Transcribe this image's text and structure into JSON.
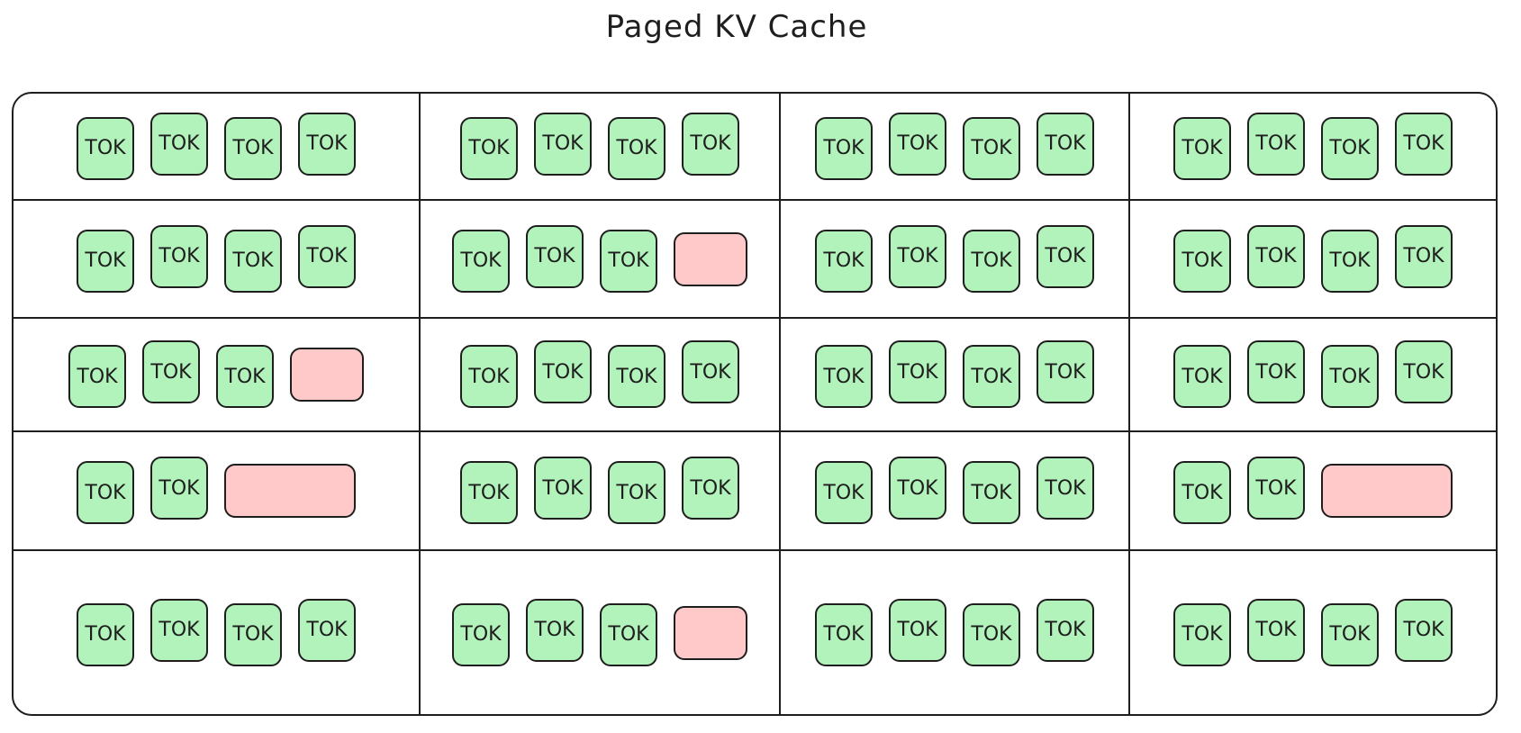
{
  "title": "Paged KV Cache",
  "colors": {
    "token_fill": "#b2f2bb",
    "free_fill": "#ffc9c9",
    "stroke": "#1e1e1e"
  },
  "token_label": "TOK",
  "grid": [
    [
      [
        "TOK",
        "TOK",
        "TOK",
        "TOK"
      ],
      [
        "TOK",
        "TOK",
        "TOK",
        "TOK"
      ],
      [
        "TOK",
        "TOK",
        "TOK",
        "TOK"
      ],
      [
        "TOK",
        "TOK",
        "TOK",
        "TOK"
      ]
    ],
    [
      [
        "TOK",
        "TOK",
        "TOK",
        "TOK"
      ],
      [
        "TOK",
        "TOK",
        "TOK",
        ""
      ],
      [
        "TOK",
        "TOK",
        "TOK",
        "TOK"
      ],
      [
        "TOK",
        "TOK",
        "TOK",
        "TOK"
      ]
    ],
    [
      [
        "TOK",
        "TOK",
        "TOK",
        ""
      ],
      [
        "TOK",
        "TOK",
        "TOK",
        "TOK"
      ],
      [
        "TOK",
        "TOK",
        "TOK",
        "TOK"
      ],
      [
        "TOK",
        "TOK",
        "TOK",
        "TOK"
      ]
    ],
    [
      [
        "TOK",
        "TOK",
        "",
        ""
      ],
      [
        "TOK",
        "TOK",
        "TOK",
        "TOK"
      ],
      [
        "TOK",
        "TOK",
        "TOK",
        "TOK"
      ],
      [
        "TOK",
        "TOK",
        "",
        ""
      ]
    ],
    [
      [
        "TOK",
        "TOK",
        "TOK",
        "TOK"
      ],
      [
        "TOK",
        "TOK",
        "TOK",
        ""
      ],
      [
        "TOK",
        "TOK",
        "TOK",
        "TOK"
      ],
      [
        "TOK",
        "TOK",
        "TOK",
        "TOK"
      ]
    ]
  ]
}
